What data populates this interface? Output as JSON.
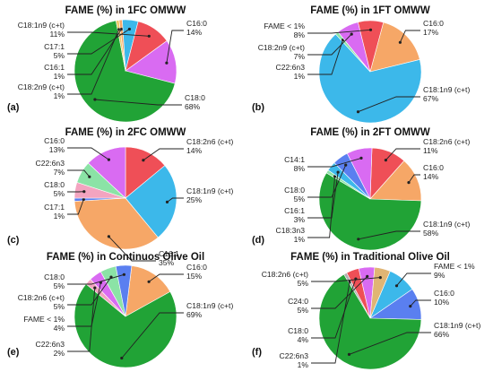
{
  "colors": {
    "green": "#21a336",
    "sky": "#3cb8ea",
    "orange": "#f6a767",
    "red": "#ef4f57",
    "violet": "#d96bf2",
    "blue": "#5a7ff0",
    "mint": "#8be3a6",
    "pink": "#f3a4c0",
    "tan": "#e0b574",
    "gray": "#b0b0b0",
    "gold": "#f0c96b"
  },
  "chart_data": [
    {
      "type": "pie",
      "panel": "(a)",
      "title": "FAME (%) in 1FC OMWW",
      "slices": [
        {
          "label": "C16:0",
          "value": 14,
          "color": "violet"
        },
        {
          "label": "C18:0",
          "value": 68,
          "color": "green"
        },
        {
          "label": "C18:2n9 (c+t)",
          "value": 1,
          "color": "gold"
        },
        {
          "label": "C16:1",
          "value": 1,
          "color": "orange"
        },
        {
          "label": "C17:1",
          "value": 5,
          "color": "sky"
        },
        {
          "label": "C18:1n9 (c+t)",
          "value": 11,
          "color": "red"
        }
      ]
    },
    {
      "type": "pie",
      "panel": "(b)",
      "title": "FAME (%) in 1FT OMWW",
      "slices": [
        {
          "label": "C16:0",
          "value": 17,
          "color": "orange"
        },
        {
          "label": "C18:1n9 (c+t)",
          "value": 67,
          "color": "sky"
        },
        {
          "label": "C22:6n3",
          "value": 1,
          "color": "mint"
        },
        {
          "label": "C18:2n9 (c+t)",
          "value": 7,
          "color": "violet"
        },
        {
          "label": "FAME < 1%",
          "value": 8,
          "color": "red"
        }
      ]
    },
    {
      "type": "pie",
      "panel": "(c)",
      "title": "FAME (%) in 2FC OMWW",
      "slices": [
        {
          "label": "C18:2n6 (c+t)",
          "value": 14,
          "color": "red"
        },
        {
          "label": "C18:1n9 (c+t)",
          "value": 25,
          "color": "sky"
        },
        {
          "label": "C16:1",
          "value": 35,
          "color": "orange"
        },
        {
          "label": "C17:1",
          "value": 1,
          "color": "blue"
        },
        {
          "label": "C18:0",
          "value": 5,
          "color": "pink"
        },
        {
          "label": "C22:6n3",
          "value": 7,
          "color": "mint"
        },
        {
          "label": "C16:0",
          "value": 13,
          "color": "violet"
        }
      ]
    },
    {
      "type": "pie",
      "panel": "(d)",
      "title": "FAME (%) in 2FT OMWW",
      "slices": [
        {
          "label": "C18:2n6 (c+t)",
          "value": 11,
          "color": "red"
        },
        {
          "label": "C16:0",
          "value": 14,
          "color": "orange"
        },
        {
          "label": "C18:1n9 (c+t)",
          "value": 58,
          "color": "green"
        },
        {
          "label": "C18:3n3",
          "value": 1,
          "color": "mint"
        },
        {
          "label": "C16:1",
          "value": 3,
          "color": "sky"
        },
        {
          "label": "C18:0",
          "value": 5,
          "color": "blue"
        },
        {
          "label": "C14:1",
          "value": 8,
          "color": "violet"
        }
      ]
    },
    {
      "type": "pie",
      "panel": "(e)",
      "title": "FAME (%) in Continuos Olive Oil",
      "slices": [
        {
          "label": "C16:0",
          "value": 15,
          "color": "orange"
        },
        {
          "label": "C18:1n9 (c+t)",
          "value": 69,
          "color": "green"
        },
        {
          "label": "C22:6n3",
          "value": 2,
          "color": "pink"
        },
        {
          "label": "FAME < 1%",
          "value": 4,
          "color": "violet"
        },
        {
          "label": "C18:2n6 (c+t)",
          "value": 5,
          "color": "mint"
        },
        {
          "label": "C18:0",
          "value": 5,
          "color": "blue"
        }
      ]
    },
    {
      "type": "pie",
      "panel": "(f)",
      "title": "FAME (%) in Traditional Olive Oil",
      "slices": [
        {
          "label": "FAME < 1%",
          "value": 9,
          "color": "sky"
        },
        {
          "label": "C16:0",
          "value": 10,
          "color": "blue"
        },
        {
          "label": "C18:1n9 (c+t)",
          "value": 66,
          "color": "green"
        },
        {
          "label": "C22:6n3",
          "value": 1,
          "color": "gray"
        },
        {
          "label": "C18:0",
          "value": 4,
          "color": "red"
        },
        {
          "label": "C24:0",
          "value": 5,
          "color": "violet"
        },
        {
          "label": "C18:2n6 (c+t)",
          "value": 5,
          "color": "tan"
        }
      ]
    }
  ]
}
